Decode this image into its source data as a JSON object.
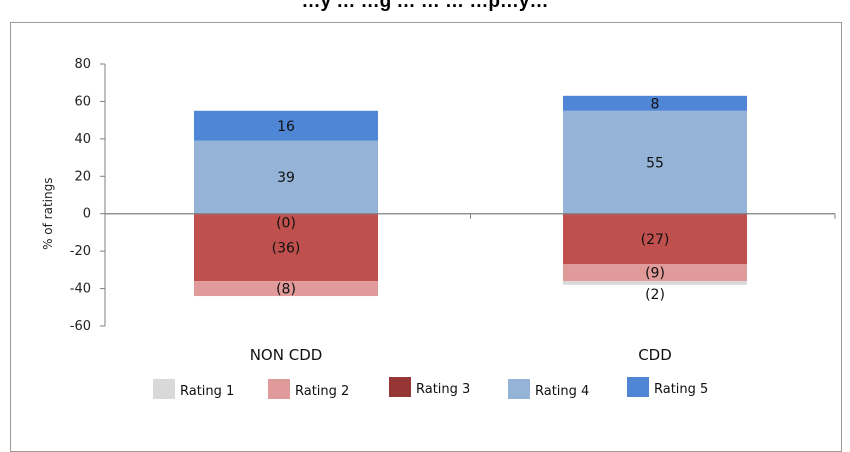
{
  "chart_data": {
    "type": "bar",
    "stacked": true,
    "title": "…y … …g … … … …p…y…",
    "ylabel": "% of ratings",
    "xlabel": "",
    "ylim": [
      -60,
      80
    ],
    "yticks": [
      80,
      60,
      40,
      20,
      0,
      -20,
      -40,
      -60
    ],
    "categories": [
      "NON CDD",
      "CDD"
    ],
    "series": [
      {
        "name": "Rating 1",
        "values": [
          0,
          -2
        ],
        "labels": [
          "(0)",
          "(2)"
        ],
        "color": "#d9d9d9"
      },
      {
        "name": "Rating 2",
        "values": [
          -8,
          -9
        ],
        "labels": [
          "(8)",
          "(9)"
        ],
        "color": "#e09a9a"
      },
      {
        "name": "Rating 3",
        "values": [
          -36,
          -27
        ],
        "labels": [
          "(36)",
          "(27)"
        ],
        "color": "#c0504d"
      },
      {
        "name": "Rating 4",
        "values": [
          39,
          55
        ],
        "labels": [
          "39",
          "55"
        ],
        "color": "#95b3d7"
      },
      {
        "name": "Rating 5",
        "values": [
          16,
          8
        ],
        "labels": [
          "16",
          "8"
        ],
        "color": "#4f86d6"
      }
    ],
    "legend": {
      "position": "bottom",
      "entries": [
        {
          "label": "Rating 1",
          "color": "#d9d9d9"
        },
        {
          "label": "Rating 2",
          "color": "#e09a9a"
        },
        {
          "label": "Rating 3",
          "color": "#963634"
        },
        {
          "label": "Rating 4",
          "color": "#95b3d7"
        },
        {
          "label": "Rating 5",
          "color": "#4f86d6"
        }
      ]
    },
    "grid": false
  }
}
